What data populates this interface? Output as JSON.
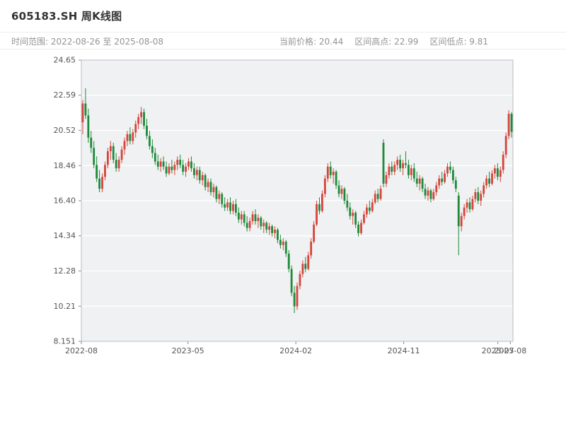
{
  "header": {
    "title": "605183.SH 周K线图",
    "range_label": "时间范围: 2022-08-26 至 2025-08-08",
    "current_price_label": "当前价格: 20.44",
    "range_high_label": "区间高点: 22.99",
    "range_low_label": "区间低点: 9.81"
  },
  "chart_data": {
    "type": "candlestick",
    "title": "605183.SH 周K线图",
    "symbol": "605183.SH",
    "interval": "weekly",
    "date_range": {
      "start": "2022-08-26",
      "end": "2025-08-08"
    },
    "current_price": 20.44,
    "range_high": 22.99,
    "range_low": 9.81,
    "ylim": [
      8.151,
      24.65
    ],
    "y_ticks": [
      "8.151",
      "10.21",
      "12.28",
      "14.34",
      "16.40",
      "18.46",
      "20.52",
      "22.59",
      "24.65"
    ],
    "x_ticks": [
      {
        "label": "2022-08",
        "pos": 0.0
      },
      {
        "label": "2023-05",
        "pos": 0.247
      },
      {
        "label": "2024-02",
        "pos": 0.497
      },
      {
        "label": "2024-11",
        "pos": 0.747
      },
      {
        "label": "2025-07",
        "pos": 0.965
      },
      {
        "label": "2025-08",
        "pos": 0.994
      }
    ],
    "grid": true,
    "legend": "none",
    "up_color": "#d5453c",
    "down_color": "#1f8a3c",
    "candles": [
      [
        21.0,
        22.3,
        20.3,
        22.1
      ],
      [
        22.1,
        22.99,
        21.2,
        21.4
      ],
      [
        21.4,
        21.8,
        19.8,
        20.1
      ],
      [
        20.1,
        20.5,
        19.2,
        19.5
      ],
      [
        19.5,
        19.9,
        18.3,
        18.5
      ],
      [
        18.5,
        19.0,
        17.5,
        17.7
      ],
      [
        17.7,
        18.2,
        16.9,
        17.1
      ],
      [
        17.1,
        18.0,
        16.9,
        17.8
      ],
      [
        17.8,
        18.7,
        17.6,
        18.5
      ],
      [
        18.5,
        19.5,
        18.3,
        19.3
      ],
      [
        19.3,
        19.9,
        18.8,
        19.6
      ],
      [
        19.6,
        19.8,
        18.6,
        18.8
      ],
      [
        18.8,
        19.2,
        18.1,
        18.3
      ],
      [
        18.3,
        19.0,
        18.1,
        18.8
      ],
      [
        18.8,
        19.6,
        18.6,
        19.4
      ],
      [
        19.4,
        20.1,
        19.1,
        19.9
      ],
      [
        19.9,
        20.5,
        19.6,
        20.3
      ],
      [
        20.3,
        20.7,
        19.7,
        19.9
      ],
      [
        19.9,
        20.6,
        19.7,
        20.4
      ],
      [
        20.4,
        21.1,
        20.1,
        20.9
      ],
      [
        20.9,
        21.5,
        20.6,
        21.3
      ],
      [
        21.3,
        21.9,
        20.9,
        21.6
      ],
      [
        21.6,
        21.8,
        20.6,
        20.8
      ],
      [
        20.8,
        21.2,
        20.0,
        20.2
      ],
      [
        20.2,
        20.5,
        19.4,
        19.6
      ],
      [
        19.6,
        20.0,
        18.9,
        19.2
      ],
      [
        19.2,
        19.5,
        18.5,
        18.7
      ],
      [
        18.7,
        19.1,
        18.2,
        18.4
      ],
      [
        18.4,
        18.9,
        18.1,
        18.7
      ],
      [
        18.7,
        19.0,
        18.2,
        18.4
      ],
      [
        18.4,
        18.7,
        17.8,
        18.0
      ],
      [
        18.0,
        18.6,
        17.9,
        18.4
      ],
      [
        18.4,
        18.8,
        18.0,
        18.2
      ],
      [
        18.2,
        18.7,
        17.9,
        18.5
      ],
      [
        18.5,
        19.0,
        18.2,
        18.8
      ],
      [
        18.8,
        19.1,
        18.3,
        18.5
      ],
      [
        18.5,
        18.8,
        17.9,
        18.1
      ],
      [
        18.1,
        18.6,
        17.8,
        18.4
      ],
      [
        18.4,
        18.9,
        18.2,
        18.7
      ],
      [
        18.7,
        19.0,
        18.1,
        18.3
      ],
      [
        18.3,
        18.6,
        17.7,
        17.9
      ],
      [
        17.9,
        18.4,
        17.6,
        18.2
      ],
      [
        18.2,
        18.4,
        17.4,
        17.6
      ],
      [
        17.6,
        18.1,
        17.3,
        17.9
      ],
      [
        17.9,
        18.0,
        17.0,
        17.2
      ],
      [
        17.2,
        17.7,
        16.9,
        17.5
      ],
      [
        17.5,
        17.7,
        16.7,
        16.9
      ],
      [
        16.9,
        17.4,
        16.6,
        17.2
      ],
      [
        17.2,
        17.3,
        16.3,
        16.5
      ],
      [
        16.5,
        17.0,
        16.2,
        16.8
      ],
      [
        16.8,
        16.9,
        16.0,
        16.2
      ],
      [
        16.2,
        16.6,
        15.8,
        16.0
      ],
      [
        16.0,
        16.5,
        15.8,
        16.3
      ],
      [
        16.3,
        16.6,
        15.6,
        15.8
      ],
      [
        15.8,
        16.4,
        15.6,
        16.2
      ],
      [
        16.2,
        16.5,
        15.5,
        15.7
      ],
      [
        15.7,
        16.0,
        15.1,
        15.3
      ],
      [
        15.3,
        15.8,
        15.0,
        15.6
      ],
      [
        15.6,
        15.8,
        14.9,
        15.1
      ],
      [
        15.1,
        15.5,
        14.6,
        14.8
      ],
      [
        14.8,
        15.4,
        14.6,
        15.2
      ],
      [
        15.2,
        15.8,
        15.0,
        15.6
      ],
      [
        15.6,
        15.9,
        15.0,
        15.2
      ],
      [
        15.2,
        15.6,
        14.8,
        15.4
      ],
      [
        15.4,
        15.5,
        14.7,
        14.9
      ],
      [
        14.9,
        15.3,
        14.5,
        15.1
      ],
      [
        15.1,
        15.2,
        14.5,
        14.7
      ],
      [
        14.7,
        15.1,
        14.4,
        14.9
      ],
      [
        14.9,
        15.0,
        14.3,
        14.5
      ],
      [
        14.5,
        14.9,
        14.2,
        14.7
      ],
      [
        14.7,
        14.8,
        13.9,
        14.1
      ],
      [
        14.1,
        14.4,
        13.6,
        13.8
      ],
      [
        13.8,
        14.2,
        13.5,
        14.0
      ],
      [
        14.0,
        14.1,
        13.1,
        13.3
      ],
      [
        13.3,
        13.5,
        12.2,
        12.4
      ],
      [
        12.4,
        12.6,
        10.8,
        11.0
      ],
      [
        11.0,
        11.4,
        9.81,
        10.2
      ],
      [
        10.2,
        11.6,
        10.0,
        11.4
      ],
      [
        11.4,
        12.3,
        11.2,
        12.1
      ],
      [
        12.1,
        12.9,
        11.9,
        12.7
      ],
      [
        12.7,
        13.1,
        12.2,
        12.4
      ],
      [
        12.4,
        13.4,
        12.3,
        13.2
      ],
      [
        13.2,
        14.2,
        13.0,
        14.0
      ],
      [
        14.0,
        15.2,
        13.9,
        15.0
      ],
      [
        15.0,
        16.4,
        14.9,
        16.2
      ],
      [
        16.2,
        16.6,
        15.6,
        15.8
      ],
      [
        15.8,
        17.0,
        15.7,
        16.8
      ],
      [
        16.8,
        17.9,
        16.6,
        17.7
      ],
      [
        17.7,
        18.6,
        17.5,
        18.4
      ],
      [
        18.4,
        18.7,
        17.7,
        17.9
      ],
      [
        17.9,
        18.3,
        17.4,
        18.1
      ],
      [
        18.1,
        18.2,
        17.1,
        17.3
      ],
      [
        17.3,
        17.6,
        16.6,
        16.8
      ],
      [
        16.8,
        17.3,
        16.5,
        17.1
      ],
      [
        17.1,
        17.2,
        16.2,
        16.4
      ],
      [
        16.4,
        16.8,
        15.8,
        16.0
      ],
      [
        16.0,
        16.3,
        15.3,
        15.5
      ],
      [
        15.5,
        15.9,
        15.0,
        15.7
      ],
      [
        15.7,
        15.8,
        14.8,
        15.0
      ],
      [
        15.0,
        15.2,
        14.3,
        14.5
      ],
      [
        14.5,
        15.3,
        14.4,
        15.1
      ],
      [
        15.1,
        15.8,
        15.0,
        15.6
      ],
      [
        15.6,
        16.2,
        15.4,
        16.0
      ],
      [
        16.0,
        16.4,
        15.6,
        15.8
      ],
      [
        15.8,
        16.5,
        15.7,
        16.3
      ],
      [
        16.3,
        17.0,
        16.2,
        16.8
      ],
      [
        16.8,
        17.1,
        16.3,
        16.5
      ],
      [
        16.5,
        17.3,
        16.4,
        17.1
      ],
      [
        19.8,
        20.0,
        17.2,
        17.4
      ],
      [
        17.4,
        18.1,
        17.2,
        17.9
      ],
      [
        17.9,
        18.6,
        17.7,
        18.4
      ],
      [
        18.4,
        18.7,
        17.9,
        18.1
      ],
      [
        18.1,
        18.7,
        17.9,
        18.5
      ],
      [
        18.5,
        19.0,
        18.2,
        18.8
      ],
      [
        18.8,
        19.1,
        18.1,
        18.3
      ],
      [
        18.3,
        18.8,
        17.9,
        18.6
      ],
      [
        18.6,
        19.3,
        18.3,
        18.5
      ],
      [
        18.5,
        18.8,
        17.7,
        17.9
      ],
      [
        17.9,
        18.5,
        17.6,
        18.3
      ],
      [
        18.3,
        18.6,
        17.5,
        17.7
      ],
      [
        17.7,
        18.1,
        17.2,
        17.4
      ],
      [
        17.4,
        17.9,
        17.0,
        17.7
      ],
      [
        17.7,
        17.8,
        16.9,
        17.1
      ],
      [
        17.1,
        17.4,
        16.5,
        16.7
      ],
      [
        16.7,
        17.2,
        16.4,
        17.0
      ],
      [
        17.0,
        17.1,
        16.3,
        16.5
      ],
      [
        16.5,
        17.1,
        16.4,
        16.9
      ],
      [
        16.9,
        17.5,
        16.7,
        17.3
      ],
      [
        17.3,
        17.9,
        17.1,
        17.7
      ],
      [
        17.7,
        18.1,
        17.3,
        17.5
      ],
      [
        17.5,
        18.2,
        17.4,
        18.0
      ],
      [
        18.0,
        18.6,
        17.8,
        18.4
      ],
      [
        18.4,
        18.7,
        18.0,
        18.2
      ],
      [
        18.2,
        18.4,
        17.4,
        17.6
      ],
      [
        17.6,
        17.8,
        16.9,
        17.1
      ],
      [
        16.7,
        16.9,
        13.2,
        14.9
      ],
      [
        14.9,
        15.7,
        14.6,
        15.5
      ],
      [
        15.5,
        16.2,
        15.3,
        16.0
      ],
      [
        16.0,
        16.5,
        15.7,
        16.3
      ],
      [
        16.3,
        16.6,
        15.7,
        15.9
      ],
      [
        15.9,
        16.7,
        15.8,
        16.5
      ],
      [
        16.5,
        17.1,
        16.3,
        16.9
      ],
      [
        16.9,
        17.2,
        16.2,
        16.4
      ],
      [
        16.4,
        17.0,
        16.1,
        16.8
      ],
      [
        16.8,
        17.5,
        16.6,
        17.3
      ],
      [
        17.3,
        17.9,
        17.1,
        17.7
      ],
      [
        17.7,
        18.1,
        17.2,
        17.4
      ],
      [
        17.4,
        18.2,
        17.3,
        18.0
      ],
      [
        18.0,
        18.5,
        17.7,
        18.3
      ],
      [
        18.3,
        18.6,
        17.6,
        17.8
      ],
      [
        17.8,
        18.4,
        17.5,
        18.2
      ],
      [
        18.2,
        19.3,
        18.0,
        19.1
      ],
      [
        19.1,
        20.4,
        18.9,
        20.2
      ],
      [
        20.2,
        21.7,
        20.0,
        21.5
      ],
      [
        21.5,
        21.6,
        20.1,
        20.44
      ]
    ]
  }
}
